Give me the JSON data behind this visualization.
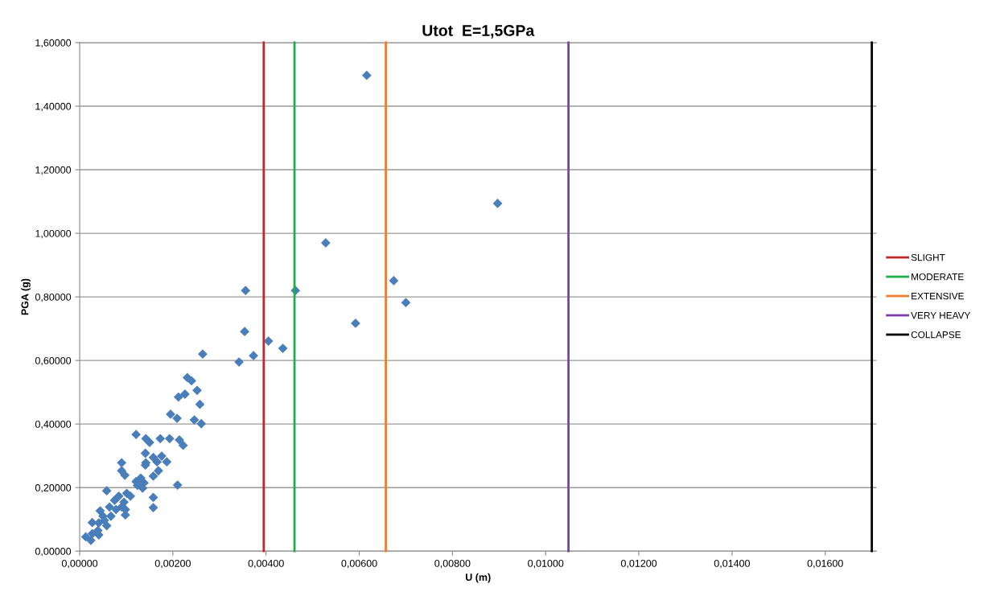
{
  "chart_data": {
    "type": "scatter",
    "title": "Utot  E=1,5GPa",
    "xlabel": "U (m)",
    "ylabel": "PGA (g)",
    "xlim": [
      0,
      0.0171
    ],
    "ylim": [
      0,
      1.6
    ],
    "xticks": [
      {
        "value": 0,
        "label": "0,00000"
      },
      {
        "value": 0.002,
        "label": "0,00200"
      },
      {
        "value": 0.004,
        "label": "0,00400"
      },
      {
        "value": 0.006,
        "label": "0,00600"
      },
      {
        "value": 0.008,
        "label": "0,00800"
      },
      {
        "value": 0.01,
        "label": "0,01000"
      },
      {
        "value": 0.012,
        "label": "0,01200"
      },
      {
        "value": 0.014,
        "label": "0,01400"
      },
      {
        "value": 0.016,
        "label": "0,01600"
      }
    ],
    "yticks": [
      {
        "value": 0,
        "label": "0,00000"
      },
      {
        "value": 0.2,
        "label": "0,20000"
      },
      {
        "value": 0.4,
        "label": "0,40000"
      },
      {
        "value": 0.6,
        "label": "0,60000"
      },
      {
        "value": 0.8,
        "label": "0,80000"
      },
      {
        "value": 1.0,
        "label": "1,00000"
      },
      {
        "value": 1.2,
        "label": "1,20000"
      },
      {
        "value": 1.4,
        "label": "1,40000"
      },
      {
        "value": 1.6,
        "label": "1,60000"
      }
    ],
    "grid": "y",
    "legend": "right",
    "marker": "diamond",
    "series": [
      {
        "color": "#4a7ebb",
        "x": [
          0.00616,
          0.00897,
          0.00528,
          0.00356,
          0.00463,
          0.00674,
          0.007,
          0.00592,
          0.00354,
          0.00405,
          0.00436,
          0.00373,
          0.00342,
          0.00264,
          0.00231,
          0.0024,
          0.00252,
          0.00226,
          0.00212,
          0.00258,
          0.00195,
          0.00209,
          0.00246,
          0.00261,
          0.00121,
          0.00142,
          0.0015,
          0.00173,
          0.00193,
          0.00214,
          0.00222,
          0.00141,
          0.00158,
          0.00176,
          0.00187,
          0.00166,
          0.00142,
          0.0009,
          0.0009,
          0.00169,
          0.00141,
          0.00097,
          0.00158,
          0.00121,
          0.00131,
          0.00138,
          0.00124,
          0.00135,
          0.0021,
          0.00058,
          0.00158,
          0.00158,
          0.00101,
          0.00084,
          0.00109,
          0.00075,
          0.00095,
          0.00064,
          0.0009,
          0.00098,
          0.00098,
          0.00078,
          0.00044,
          0.00067,
          0.0005,
          0.00053,
          0.00027,
          0.00041,
          0.00058,
          0.00039,
          0.00027,
          0.00013,
          0.00024,
          0.00041
        ],
        "values": [
          1.497,
          1.094,
          0.97,
          0.82,
          0.82,
          0.851,
          0.782,
          0.717,
          0.691,
          0.661,
          0.638,
          0.615,
          0.595,
          0.62,
          0.546,
          0.536,
          0.506,
          0.494,
          0.485,
          0.462,
          0.431,
          0.418,
          0.413,
          0.401,
          0.367,
          0.354,
          0.342,
          0.354,
          0.354,
          0.35,
          0.333,
          0.308,
          0.295,
          0.299,
          0.281,
          0.281,
          0.278,
          0.278,
          0.253,
          0.253,
          0.271,
          0.239,
          0.236,
          0.219,
          0.23,
          0.215,
          0.207,
          0.198,
          0.208,
          0.19,
          0.169,
          0.137,
          0.182,
          0.173,
          0.173,
          0.16,
          0.154,
          0.139,
          0.139,
          0.131,
          0.114,
          0.131,
          0.127,
          0.11,
          0.11,
          0.097,
          0.09,
          0.089,
          0.08,
          0.065,
          0.055,
          0.045,
          0.034,
          0.051
        ]
      },
      {
        "type": "line",
        "name": "SLIGHT",
        "color": "#c0272d",
        "marker": "none",
        "x": [
          0.00395,
          0.00395
        ],
        "values": [
          0,
          1.6
        ]
      },
      {
        "type": "line",
        "name": "MODERATE",
        "color": "#1fae4b",
        "marker": "none",
        "x": [
          0.00461,
          0.00461
        ],
        "values": [
          0,
          1.6
        ]
      },
      {
        "type": "line",
        "name": "EXTENSIVE",
        "color": "#ed7d31",
        "marker": "none",
        "x": [
          0.00657,
          0.00657
        ],
        "values": [
          0,
          1.6
        ]
      },
      {
        "type": "line",
        "name": "VERY HEAVY",
        "color": "#7d3fb0",
        "marker": "none",
        "x": [
          0.01049,
          0.01049
        ],
        "values": [
          0,
          1.6
        ]
      },
      {
        "type": "line",
        "name": "COLLAPSE",
        "color": "#000000",
        "marker": "none",
        "x": [
          0.017,
          0.017
        ],
        "values": [
          0,
          1.6
        ]
      }
    ]
  }
}
